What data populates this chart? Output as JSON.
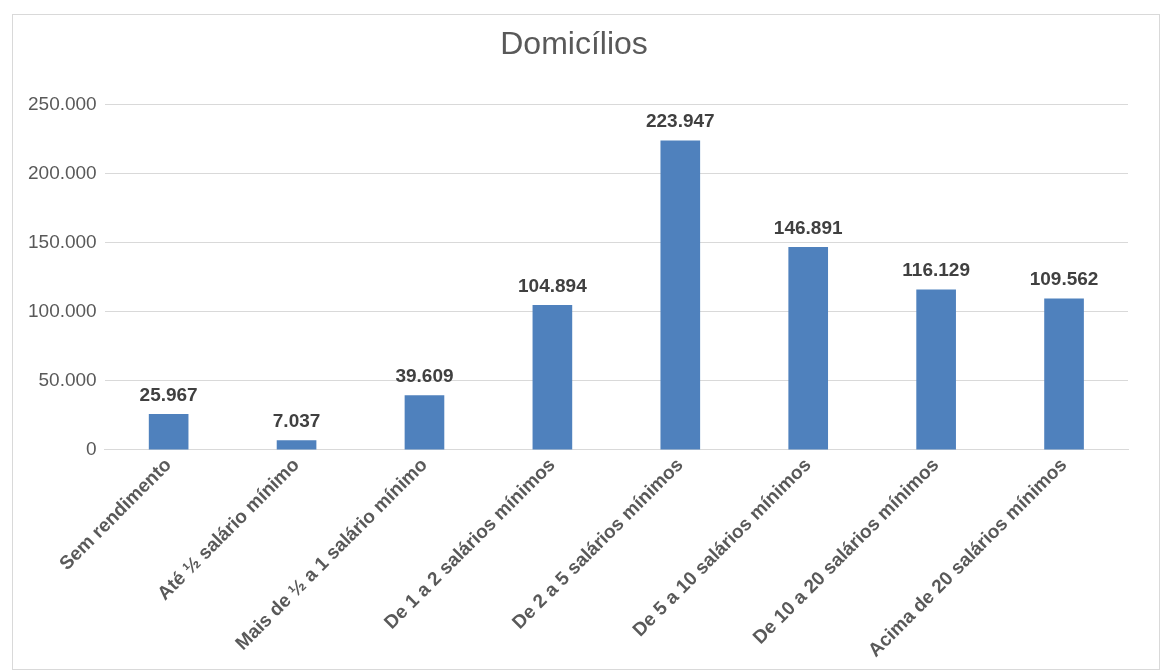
{
  "chart_data": {
    "type": "bar",
    "title": "Domicílios",
    "categories": [
      "Sem rendimento",
      "Até ½ salário mínimo",
      "Mais de ½ a 1 salário mínimo",
      "De 1 a 2 salários mínimos",
      "De 2 a 5 salários mínimos",
      "De 5 a 10 salários mínimos",
      "De 10 a 20 salários mínimos",
      "Acima de 20 salários mínimos"
    ],
    "values": [
      25967,
      7037,
      39609,
      104894,
      223947,
      146891,
      116129,
      109562
    ],
    "value_labels": [
      "25.967",
      "7.037",
      "39.609",
      "104.894",
      "223.947",
      "146.891",
      "116.129",
      "109.562"
    ],
    "color": "#4f81bd",
    "ylim": [
      0,
      250000
    ],
    "yticks": [
      {
        "value": 0,
        "label": "0"
      },
      {
        "value": 50000,
        "label": "50.000"
      },
      {
        "value": 100000,
        "label": "100.000"
      },
      {
        "value": 150000,
        "label": "150.000"
      },
      {
        "value": 200000,
        "label": "200.000"
      },
      {
        "value": 250000,
        "label": "250.000"
      }
    ],
    "grid": "y",
    "legend": false
  }
}
